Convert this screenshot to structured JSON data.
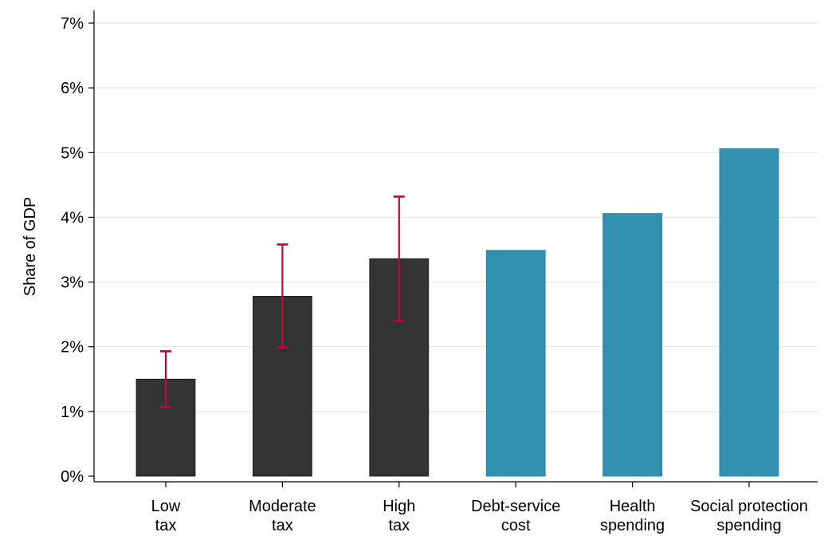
{
  "chart_data": {
    "type": "bar",
    "title": "",
    "xlabel": "",
    "ylabel": "Share of GDP",
    "ylim": [
      0,
      7
    ],
    "y_ticks": [
      "0%",
      "1%",
      "2%",
      "3%",
      "4%",
      "5%",
      "6%",
      "7%"
    ],
    "grid": true,
    "categories": [
      [
        "Low",
        "tax"
      ],
      [
        "Moderate",
        "tax"
      ],
      [
        "High",
        "tax"
      ],
      [
        "Debt-service",
        "cost"
      ],
      [
        "Health",
        "spending"
      ],
      [
        "Social protection",
        "spending"
      ]
    ],
    "values": [
      1.5,
      2.78,
      3.36,
      3.49,
      4.06,
      5.06
    ],
    "error_bars": [
      {
        "low": 1.07,
        "high": 1.93
      },
      {
        "low": 1.99,
        "high": 3.58
      },
      {
        "low": 2.4,
        "high": 4.32
      },
      null,
      null,
      null
    ],
    "colors": {
      "tax_bars": "#333333",
      "comparison_bars": "#3391b0",
      "error_bars": "#c8003c",
      "grid": "#e2e2e2",
      "axis": "#000000"
    },
    "bar_color_groups": [
      "tax_bars",
      "tax_bars",
      "tax_bars",
      "comparison_bars",
      "comparison_bars",
      "comparison_bars"
    ]
  }
}
